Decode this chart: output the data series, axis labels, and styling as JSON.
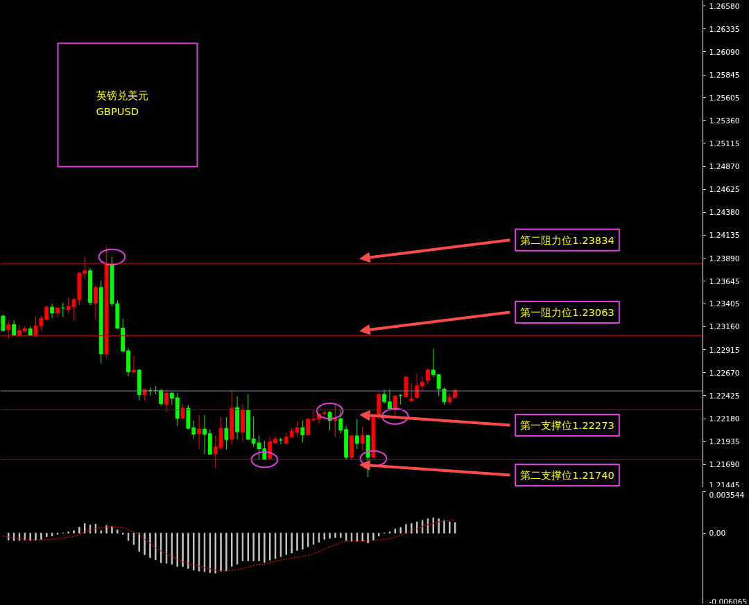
{
  "chart_data": [
    {
      "type": "candlestick",
      "title": "英镑兑美元",
      "subtitle": "GBPUSD",
      "categories": [
        null,
        null,
        null,
        null,
        null,
        null,
        null,
        null,
        null,
        null,
        null,
        null,
        null,
        null,
        null,
        null,
        null,
        null,
        null,
        null,
        null,
        null,
        null,
        null,
        null,
        null,
        null,
        null,
        null,
        null,
        null,
        null,
        null,
        null,
        null,
        null,
        null,
        null,
        null,
        null,
        null,
        null,
        null,
        null,
        null,
        null,
        null,
        null,
        null,
        null,
        null,
        null,
        null,
        null,
        null,
        null,
        null,
        null,
        null,
        null,
        null,
        null,
        null,
        null,
        null,
        null,
        null,
        null,
        null,
        null,
        null,
        null,
        null,
        null,
        null,
        null,
        null,
        null,
        null,
        null,
        null,
        null,
        null,
        null,
        null,
        null,
        null,
        null,
        null,
        null,
        null,
        null,
        null,
        null,
        null,
        null,
        null,
        null,
        null,
        null,
        null,
        null,
        null,
        null,
        null,
        null,
        null,
        null,
        null,
        null,
        null,
        null,
        null,
        null,
        null,
        null,
        null,
        null,
        null,
        null,
        null,
        null,
        null,
        null,
        null,
        null,
        null,
        null,
        null
      ],
      "ohlc": [
        [
          1.23274,
          1.23286,
          1.23113,
          1.23118
        ],
        [
          1.23126,
          1.23229,
          1.23027,
          1.23183
        ],
        [
          1.23183,
          1.23229,
          1.23069,
          1.23069
        ],
        [
          1.23069,
          1.2318,
          1.23069,
          1.23118
        ],
        [
          1.23113,
          1.2317,
          1.23094,
          1.23138
        ],
        [
          1.23138,
          1.23163,
          1.23069,
          1.23069
        ],
        [
          1.23064,
          1.23267,
          1.23047,
          1.2317
        ],
        [
          1.2317,
          1.23274,
          1.23121,
          1.23249
        ],
        [
          1.23237,
          1.23385,
          1.23232,
          1.2337
        ],
        [
          1.23368,
          1.23405,
          1.23254,
          1.23306
        ],
        [
          1.23306,
          1.2336,
          1.23254,
          1.2336
        ],
        [
          1.2336,
          1.23415,
          1.23262,
          1.2336
        ],
        [
          1.23343,
          1.23472,
          1.23299,
          1.23378
        ],
        [
          1.23373,
          1.23467,
          1.23225,
          1.23449
        ],
        [
          1.23447,
          1.23743,
          1.23392,
          1.23731
        ],
        [
          1.23728,
          1.23904,
          1.23662,
          1.23756
        ],
        [
          1.23756,
          1.23785,
          1.2339,
          1.23417
        ],
        [
          1.2341,
          1.23607,
          1.23237,
          1.23578
        ],
        [
          1.23578,
          1.23652,
          1.22768,
          1.22871
        ],
        [
          1.22871,
          1.24008,
          1.22824,
          1.2383
        ],
        [
          1.2383,
          1.23904,
          1.23373,
          1.23405
        ],
        [
          1.23405,
          1.23444,
          1.23138,
          1.23143
        ],
        [
          1.23145,
          1.23244,
          1.22884,
          1.22899
        ],
        [
          1.22903,
          1.22936,
          1.22632,
          1.22679
        ],
        [
          1.22679,
          1.22854,
          1.22656,
          1.22698
        ],
        [
          1.22698,
          1.22706,
          1.22372,
          1.22434
        ],
        [
          1.22434,
          1.22489,
          1.22372,
          1.22489
        ],
        [
          1.22479,
          1.22513,
          1.22427,
          1.22479
        ],
        [
          1.22479,
          1.22528,
          1.22439,
          1.22479
        ],
        [
          1.22479,
          1.22496,
          1.22316,
          1.2234
        ],
        [
          1.2233,
          1.22491,
          1.22249,
          1.22452
        ],
        [
          1.22452,
          1.22464,
          1.22323,
          1.22397
        ],
        [
          1.22402,
          1.22452,
          1.22101,
          1.22182
        ],
        [
          1.22182,
          1.22335,
          1.22175,
          1.22291
        ],
        [
          1.22291,
          1.22328,
          1.22071,
          1.22076
        ],
        [
          1.22083,
          1.22157,
          1.21965,
          1.22014
        ],
        [
          1.22019,
          1.22217,
          1.21854,
          1.22068
        ],
        [
          1.22068,
          1.22217,
          1.21804,
          1.22012
        ],
        [
          1.22019,
          1.22064,
          1.21799,
          1.21799
        ],
        [
          1.21804,
          1.22002,
          1.21656,
          1.21878
        ],
        [
          1.21871,
          1.222,
          1.21854,
          1.22076
        ],
        [
          1.22076,
          1.22195,
          1.21849,
          1.21953
        ],
        [
          1.21959,
          1.22483,
          1.21902,
          1.2229
        ],
        [
          1.22298,
          1.22421,
          1.21957,
          1.22038
        ],
        [
          1.22033,
          1.22335,
          1.21932,
          1.22273
        ],
        [
          1.22268,
          1.22438,
          1.21952,
          1.21959
        ],
        [
          1.21964,
          1.22204,
          1.21878,
          1.21915
        ],
        [
          1.2192,
          1.22001,
          1.21742,
          1.21858
        ],
        [
          1.21858,
          1.21944,
          1.21742,
          1.21747
        ],
        [
          1.21754,
          1.21984,
          1.21742,
          1.21935
        ],
        [
          1.21922,
          1.21994,
          1.21907,
          1.21964
        ],
        [
          1.21952,
          1.21977,
          1.21907,
          1.21952
        ],
        [
          1.21915,
          1.22031,
          1.2191,
          1.21984
        ],
        [
          1.21984,
          1.2208,
          1.21982,
          1.22046
        ],
        [
          1.22033,
          1.22149,
          1.21989,
          1.22083
        ],
        [
          1.22083,
          1.22162,
          1.21927,
          1.22006
        ],
        [
          1.22006,
          1.22187,
          1.22001,
          1.22174
        ],
        [
          1.22167,
          1.22273,
          1.22145,
          1.22174
        ],
        [
          1.22174,
          1.22236,
          1.22117,
          1.22231
        ],
        [
          1.22236,
          1.22268,
          1.22174,
          1.22243
        ],
        [
          1.22248,
          1.22261,
          1.22056,
          1.22162
        ],
        [
          1.22159,
          1.22317,
          1.21989,
          1.22174
        ],
        [
          1.22179,
          1.22285,
          1.22021,
          1.22058
        ],
        [
          1.22063,
          1.22105,
          1.21742,
          1.21767
        ],
        [
          1.21767,
          1.22001,
          1.21742,
          1.21996
        ],
        [
          1.21996,
          1.22174,
          1.21853,
          1.21915
        ],
        [
          1.21915,
          1.22093,
          1.21841,
          1.22001
        ],
        [
          1.22001,
          1.22006,
          1.21557,
          1.21767
        ],
        [
          1.21767,
          1.22211,
          1.21754,
          1.22204
        ],
        [
          1.22199,
          1.22451,
          1.22174,
          1.22438
        ],
        [
          1.22438,
          1.2249,
          1.22342,
          1.22359
        ],
        [
          1.22359,
          1.2249,
          1.22261,
          1.22278
        ],
        [
          1.22273,
          1.22433,
          1.22204,
          1.22421
        ],
        [
          1.22426,
          1.22441,
          1.22335,
          1.22426
        ],
        [
          1.22414,
          1.22636,
          1.22409,
          1.22624
        ],
        [
          1.22367,
          1.22552,
          1.22367,
          1.22389
        ],
        [
          1.22404,
          1.22661,
          1.22397,
          1.22532
        ],
        [
          1.22527,
          1.22631,
          1.22463,
          1.22569
        ],
        [
          1.22587,
          1.22713,
          1.22545,
          1.22698
        ],
        [
          1.22698,
          1.22927,
          1.22619,
          1.22648
        ],
        [
          1.22648,
          1.22656,
          1.22421,
          1.225
        ],
        [
          1.22495,
          1.22512,
          1.22327,
          1.22359
        ],
        [
          1.22359,
          1.22446,
          1.2233,
          1.22404
        ],
        [
          1.22404,
          1.22488,
          1.22401,
          1.22483
        ],
        null,
        null,
        null,
        null,
        null,
        null,
        null,
        null,
        null,
        null,
        null,
        null,
        null,
        null,
        null,
        null,
        null,
        null,
        null,
        null,
        null,
        null,
        null,
        null,
        null,
        null,
        null,
        null,
        null,
        null,
        null,
        null,
        null,
        null,
        null,
        null,
        null,
        null,
        null,
        null,
        null,
        null,
        null,
        null,
        null
      ],
      "colors": [
        "#00ff00",
        "#ff0000",
        "#00ff00",
        "#ff0000",
        "#ff0000",
        "#00ff00",
        "#ff0000",
        "#ff0000",
        "#ff0000",
        "#00ff00",
        "#ff0000",
        "#00ff00",
        "#ff0000",
        "#ff0000",
        "#ff0000",
        "#ff0000",
        "#00ff00",
        "#ff0000",
        "#00ff00",
        "#ff0000",
        "#00ff00",
        "#00ff00",
        "#00ff00",
        "#00ff00",
        "#ff0000",
        "#00ff00",
        "#ff0000",
        "#00ff00",
        "#00ff00",
        "#00ff00",
        "#ff0000",
        "#00ff00",
        "#00ff00",
        "#ff0000",
        "#00ff00",
        "#00ff00",
        "#ff0000",
        "#00ff00",
        "#00ff00",
        "#ff0000",
        "#ff0000",
        "#00ff00",
        "#ff0000",
        "#00ff00",
        "#ff0000",
        "#00ff00",
        "#00ff00",
        "#00ff00",
        "#00ff00",
        "#ff0000",
        "#ff0000",
        "#00ff00",
        "#ff0000",
        "#ff0000",
        "#ff0000",
        "#00ff00",
        "#ff0000",
        "#ff0000",
        "#ff0000",
        "#ff0000",
        "#00ff00",
        "#ff0000",
        "#00ff00",
        "#00ff00",
        "#ff0000",
        "#00ff00",
        "#ff0000",
        "#00ff00",
        "#ff0000",
        "#ff0000",
        "#00ff00",
        "#00ff00",
        "#ff0000",
        "#00ff00",
        "#ff0000",
        "#ff0000",
        "#ff0000",
        "#ff0000",
        "#ff0000",
        "#00ff00",
        "#00ff00",
        "#00ff00",
        "#ff0000",
        "#ff0000",
        null,
        null,
        null,
        null,
        null,
        null,
        null,
        null,
        null,
        null,
        null,
        null,
        null,
        null,
        null,
        null,
        null,
        null,
        null,
        null,
        null,
        null,
        null,
        null,
        null,
        null,
        null,
        null,
        null,
        null,
        null,
        null,
        null,
        null,
        null,
        null,
        null,
        null,
        null,
        null,
        null,
        null,
        null,
        null,
        null
      ],
      "ylim": [
        1.21445,
        1.2664
      ],
      "yticks": [
        {
          "value": 1.2658,
          "label": "1.26580"
        },
        {
          "value": 1.26335,
          "label": "1.26335"
        },
        {
          "value": 1.2609,
          "label": "1.26090"
        },
        {
          "value": 1.25845,
          "label": "1.25845"
        },
        {
          "value": 1.25605,
          "label": "1.25605"
        },
        {
          "value": 1.2536,
          "label": "1.25360"
        },
        {
          "value": 1.25115,
          "label": "1.25115"
        },
        {
          "value": 1.2487,
          "label": "1.24870"
        },
        {
          "value": 1.24625,
          "label": "1.24625"
        },
        {
          "value": 1.2438,
          "label": "1.24380"
        },
        {
          "value": 1.24135,
          "label": "1.24135"
        },
        {
          "value": 1.2389,
          "label": "1.23890"
        },
        {
          "value": 1.23645,
          "label": "1.23645"
        },
        {
          "value": 1.23405,
          "label": "1.23405"
        },
        {
          "value": 1.2316,
          "label": "1.23160"
        },
        {
          "value": 1.22915,
          "label": "1.22915"
        },
        {
          "value": 1.2267,
          "label": "1.22670"
        },
        {
          "value": 1.22425,
          "label": "1.22425"
        },
        {
          "value": 1.2218,
          "label": "1.22180"
        },
        {
          "value": 1.21935,
          "label": "1.21935"
        },
        {
          "value": 1.2169,
          "label": "1.21690"
        },
        {
          "value": 1.21445,
          "label": "1.21445"
        }
      ],
      "ref_lines": [
        {
          "axis": "y",
          "value": 1.23834,
          "label": "第二阻力位1.23834",
          "color": "#b01818"
        },
        {
          "axis": "y",
          "value": 1.23063,
          "label": "第一阻力位1.23063",
          "color": "#a01010"
        },
        {
          "axis": "y",
          "value": 1.22475,
          "label": null,
          "color": "#7a8a98"
        },
        {
          "axis": "y",
          "value": 1.22273,
          "label": "第一支撑位1.22273",
          "color": "#a01010"
        },
        {
          "axis": "y",
          "value": 1.2174,
          "label": "第二支撑位1.21740",
          "color": "#a01010"
        }
      ],
      "tick_labels": "y",
      "grid": false
    },
    {
      "type": "bar",
      "categories": [
        null,
        null,
        null,
        null,
        null,
        null,
        null,
        null,
        null,
        null,
        null,
        null,
        null,
        null,
        null,
        null,
        null,
        null,
        null,
        null,
        null,
        null,
        null,
        null,
        null,
        null,
        null,
        null,
        null,
        null,
        null,
        null,
        null,
        null,
        null,
        null,
        null,
        null,
        null,
        null,
        null,
        null,
        null,
        null,
        null,
        null,
        null,
        null,
        null,
        null,
        null,
        null,
        null,
        null,
        null,
        null,
        null,
        null,
        null,
        null,
        null,
        null,
        null,
        null,
        null,
        null,
        null,
        null,
        null,
        null,
        null,
        null,
        null,
        null,
        null,
        null,
        null,
        null,
        null,
        null,
        null,
        null,
        null,
        null,
        null,
        null,
        null,
        null,
        null,
        null,
        null,
        null,
        null,
        null,
        null,
        null,
        null,
        null,
        null,
        null,
        null,
        null,
        null,
        null,
        null,
        null,
        null,
        null,
        null,
        null,
        null,
        null,
        null,
        null,
        null,
        null,
        null,
        null,
        null,
        null,
        null,
        null,
        null,
        null,
        null,
        null,
        null,
        null,
        null
      ],
      "series": [
        {
          "type": "bar",
          "color": "#c8c8c8",
          "values": [
            null,
            -0.00059,
            -0.00064,
            -0.00064,
            -0.00059,
            -0.00064,
            -0.00059,
            -0.00053,
            -0.00032,
            -0.00024,
            -0.00011,
            0,
            0.0001,
            0.00021,
            0.00051,
            0.00082,
            0.00069,
            0.00077,
            0.00021,
            0.00064,
            0.00056,
            0.00027,
            -0.00011,
            -0.00064,
            -0.00098,
            -0.00157,
            -0.00184,
            -0.0021,
            -0.00229,
            -0.00253,
            -0.00258,
            -0.00266,
            -0.00285,
            -0.00285,
            -0.00303,
            -0.00317,
            -0.00325,
            -0.0033,
            -0.00338,
            -0.00343,
            -0.00327,
            -0.00325,
            -0.00285,
            -0.00266,
            -0.00237,
            -0.00237,
            -0.00237,
            -0.00237,
            -0.0025,
            -0.00231,
            -0.00218,
            -0.00202,
            -0.00184,
            -0.0017,
            -0.00149,
            -0.00138,
            -0.00117,
            -0.00096,
            -0.00077,
            -0.00053,
            -0.00045,
            -0.00037,
            -0.00037,
            -0.00064,
            -0.00069,
            -0.00069,
            -0.00069,
            -0.00085,
            -0.00059,
            -0.00024,
            0,
            0.00011,
            0.00035,
            0.00048,
            0.00074,
            0.00082,
            0.00096,
            0.00109,
            0.00122,
            0.0013,
            0.00122,
            0.00109,
            0.00096,
            0.0009,
            null,
            null,
            null,
            null,
            null,
            null,
            null,
            null,
            null,
            null,
            null,
            null,
            null,
            null,
            null,
            null,
            null,
            null,
            null,
            null,
            null,
            null,
            null,
            null,
            null,
            null,
            null,
            null,
            null,
            null,
            null,
            null,
            null,
            null,
            null,
            null,
            null,
            null,
            null,
            null,
            null,
            null,
            null,
            null,
            null
          ]
        },
        {
          "type": "line",
          "color": "#cc0000",
          "line_style": "dotted",
          "values": [
            -0.00024,
            -0.00032,
            -0.0004,
            -0.00048,
            -0.00053,
            -0.00056,
            -0.00059,
            -0.00059,
            -0.00056,
            -0.00053,
            -0.00048,
            -0.0004,
            -0.00035,
            -0.00029,
            -0.00013,
            0.0001,
            0.00024,
            0.00037,
            0.00048,
            0.00053,
            0.00053,
            0.00053,
            0.00048,
            0.00027,
            0.0001,
            -0.00013,
            -0.00053,
            -0.00085,
            -0.00125,
            -0.00152,
            -0.00178,
            -0.00202,
            -0.00223,
            -0.00245,
            -0.00258,
            -0.00271,
            -0.00282,
            -0.00295,
            -0.00306,
            -0.00314,
            -0.00322,
            -0.00325,
            -0.00319,
            -0.00314,
            -0.00303,
            -0.00293,
            -0.00279,
            -0.00269,
            -0.00261,
            -0.00253,
            -0.00242,
            -0.00231,
            -0.00223,
            -0.00213,
            -0.00207,
            -0.002,
            -0.00189,
            -0.00176,
            -0.0016,
            -0.00136,
            -0.00117,
            -0.00101,
            -0.0008,
            -0.00072,
            -0.00067,
            -0.00067,
            -0.00064,
            -0.00064,
            -0.00061,
            -0.00059,
            -0.00053,
            -0.00048,
            -0.00035,
            -0.00019,
            0,
            0.00019,
            0.00037,
            0.00056,
            0.00072,
            0.00085,
            0.00096,
            0.00104,
            0.00109,
            0.00109,
            null,
            null,
            null,
            null,
            null,
            null,
            null,
            null,
            null,
            null,
            null,
            null,
            null,
            null,
            null,
            null,
            null,
            null,
            null,
            null,
            null,
            null,
            null,
            null,
            null,
            null,
            null,
            null,
            null,
            null,
            null,
            null,
            null,
            null,
            null,
            null,
            null,
            null,
            null,
            null,
            null,
            null,
            null,
            null,
            null
          ]
        }
      ],
      "ylim": [
        -0.006065,
        0.003544
      ],
      "yticks": [
        0.003544,
        {
          "value": 0,
          "label": "0.00"
        },
        -0.006065
      ],
      "tick_labels": "y",
      "grid": false
    }
  ]
}
